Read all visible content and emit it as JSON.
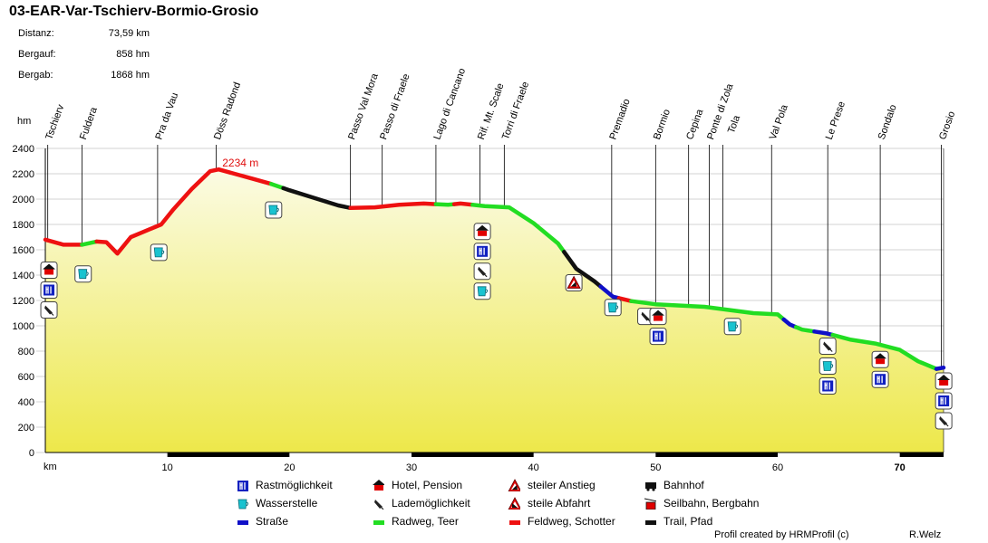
{
  "header": {
    "title": "03-EAR-Var-Tschierv-Bormio-Grosio",
    "stats": [
      {
        "label": "Distanz:",
        "value": "73,59 km"
      },
      {
        "label": "Bergauf:",
        "value": "858 hm"
      },
      {
        "label": "Bergab:",
        "value": "1868 hm"
      }
    ]
  },
  "footer": {
    "created_by": "Profil created by HRMProfil (c)",
    "author": "R.Welz"
  },
  "colors": {
    "road": "#1010c8",
    "bike": "#22dd22",
    "gravel": "#ee1111",
    "trail": "#111111",
    "fill_top": "#fbfbe4",
    "fill_bottom": "#ede84a"
  },
  "chart_data": {
    "type": "line",
    "xlabel": "km",
    "ylabel": "hm",
    "xlim": [
      0,
      73.59
    ],
    "ylim": [
      0,
      2400
    ],
    "x_ticks": [
      10,
      20,
      30,
      40,
      50,
      60,
      70
    ],
    "y_ticks": [
      0,
      200,
      400,
      600,
      800,
      1000,
      1200,
      1400,
      1600,
      1800,
      2000,
      2200,
      2400
    ],
    "max_label": "2234 m",
    "max_point": {
      "km": 14.2,
      "elev": 2234
    },
    "profile": [
      {
        "km": 0,
        "elev": 1680
      },
      {
        "km": 1.5,
        "elev": 1640
      },
      {
        "km": 3,
        "elev": 1640
      },
      {
        "km": 4.2,
        "elev": 1665
      },
      {
        "km": 5.0,
        "elev": 1660
      },
      {
        "km": 5.9,
        "elev": 1570
      },
      {
        "km": 7,
        "elev": 1700
      },
      {
        "km": 8.5,
        "elev": 1760
      },
      {
        "km": 9.5,
        "elev": 1800
      },
      {
        "km": 10.5,
        "elev": 1920
      },
      {
        "km": 12,
        "elev": 2080
      },
      {
        "km": 13.5,
        "elev": 2220
      },
      {
        "km": 14.2,
        "elev": 2234
      },
      {
        "km": 15.5,
        "elev": 2200
      },
      {
        "km": 17,
        "elev": 2160
      },
      {
        "km": 18.5,
        "elev": 2120
      },
      {
        "km": 20,
        "elev": 2070
      },
      {
        "km": 22,
        "elev": 2010
      },
      {
        "km": 24,
        "elev": 1950
      },
      {
        "km": 25,
        "elev": 1930
      },
      {
        "km": 27,
        "elev": 1935
      },
      {
        "km": 29,
        "elev": 1955
      },
      {
        "km": 31,
        "elev": 1965
      },
      {
        "km": 33,
        "elev": 1955
      },
      {
        "km": 34,
        "elev": 1965
      },
      {
        "km": 36,
        "elev": 1945
      },
      {
        "km": 38,
        "elev": 1935
      },
      {
        "km": 40,
        "elev": 1810
      },
      {
        "km": 42,
        "elev": 1650
      },
      {
        "km": 43.5,
        "elev": 1450
      },
      {
        "km": 45,
        "elev": 1350
      },
      {
        "km": 46.5,
        "elev": 1230
      },
      {
        "km": 48,
        "elev": 1195
      },
      {
        "km": 50,
        "elev": 1170
      },
      {
        "km": 52,
        "elev": 1160
      },
      {
        "km": 54,
        "elev": 1150
      },
      {
        "km": 56,
        "elev": 1125
      },
      {
        "km": 58,
        "elev": 1100
      },
      {
        "km": 60,
        "elev": 1090
      },
      {
        "km": 61,
        "elev": 1010
      },
      {
        "km": 62,
        "elev": 970
      },
      {
        "km": 64,
        "elev": 940
      },
      {
        "km": 66,
        "elev": 890
      },
      {
        "km": 68,
        "elev": 860
      },
      {
        "km": 70,
        "elev": 810
      },
      {
        "km": 71.5,
        "elev": 720
      },
      {
        "km": 73,
        "elev": 660
      },
      {
        "km": 73.59,
        "elev": 670
      }
    ],
    "segments": [
      {
        "from": 0,
        "to": 1.2,
        "type": "gravel"
      },
      {
        "from": 1.2,
        "to": 3,
        "type": "gravel"
      },
      {
        "from": 3,
        "to": 4.2,
        "type": "bike"
      },
      {
        "from": 4.2,
        "to": 18.5,
        "type": "gravel"
      },
      {
        "from": 18.5,
        "to": 19.5,
        "type": "bike"
      },
      {
        "from": 19.5,
        "to": 25,
        "type": "trail"
      },
      {
        "from": 25,
        "to": 32,
        "type": "gravel"
      },
      {
        "from": 32,
        "to": 33.5,
        "type": "bike"
      },
      {
        "from": 33.5,
        "to": 35,
        "type": "gravel"
      },
      {
        "from": 35,
        "to": 42.5,
        "type": "bike"
      },
      {
        "from": 42.5,
        "to": 45.5,
        "type": "trail"
      },
      {
        "from": 45.5,
        "to": 47,
        "type": "road"
      },
      {
        "from": 47,
        "to": 48,
        "type": "gravel"
      },
      {
        "from": 48,
        "to": 60.5,
        "type": "bike"
      },
      {
        "from": 60.5,
        "to": 61.5,
        "type": "road"
      },
      {
        "from": 61.5,
        "to": 63,
        "type": "bike"
      },
      {
        "from": 63,
        "to": 64.5,
        "type": "road"
      },
      {
        "from": 64.5,
        "to": 73,
        "type": "bike"
      },
      {
        "from": 73,
        "to": 73.59,
        "type": "road"
      }
    ],
    "bottom_bar": [
      {
        "from": 10,
        "to": 20
      },
      {
        "from": 30,
        "to": 40
      },
      {
        "from": 50,
        "to": 60
      },
      {
        "from": 70,
        "to": 73.59
      }
    ],
    "waypoints": [
      {
        "name": "Tschierv",
        "km": 0.2
      },
      {
        "name": "Fuldera",
        "km": 3.0
      },
      {
        "name": "Pra da Vau",
        "km": 9.2
      },
      {
        "name": "Döss Radond",
        "km": 14.0
      },
      {
        "name": "Passo Val Mora",
        "km": 25.0
      },
      {
        "name": "Passo di Fraele",
        "km": 27.6
      },
      {
        "name": "Lago di Cancano",
        "km": 32.0
      },
      {
        "name": "Rif. Mt. Scale",
        "km": 35.6
      },
      {
        "name": "Torri di Fraele",
        "km": 37.6
      },
      {
        "name": "Premadio",
        "km": 46.4
      },
      {
        "name": "Bormio",
        "km": 50.0
      },
      {
        "name": "Cepina",
        "km": 52.7
      },
      {
        "name": "Ponte di Zola",
        "km": 54.4
      },
      {
        "name": "Tola",
        "km": 55.5
      },
      {
        "name": "Val Pola",
        "km": 59.5
      },
      {
        "name": "Le Prese",
        "km": 64.1
      },
      {
        "name": "Sondalo",
        "km": 68.4
      },
      {
        "name": "Grosio",
        "km": 73.4
      }
    ],
    "icon_stacks": [
      {
        "km": 0.3,
        "elev": 1525,
        "icons": [
          "hotel",
          "food",
          "charge"
        ]
      },
      {
        "km": 3.1,
        "elev": 1495,
        "icons": [
          "water"
        ]
      },
      {
        "km": 9.3,
        "elev": 1665,
        "icons": [
          "water"
        ]
      },
      {
        "km": 18.7,
        "elev": 2000,
        "icons": [
          "water"
        ]
      },
      {
        "km": 35.8,
        "elev": 1830,
        "icons": [
          "hotel",
          "food",
          "charge",
          "water"
        ]
      },
      {
        "km": 43.3,
        "elev": 1425,
        "icons": [
          "steep_up"
        ]
      },
      {
        "km": 46.5,
        "elev": 1230,
        "icons": [
          "water"
        ]
      },
      {
        "km": 49.2,
        "elev": 1160,
        "icons": [
          "charge"
        ]
      },
      {
        "km": 50.2,
        "elev": 1160,
        "icons": [
          "hotel",
          "food"
        ]
      },
      {
        "km": 56.3,
        "elev": 1080,
        "icons": [
          "water"
        ]
      },
      {
        "km": 64.1,
        "elev": 925,
        "icons": [
          "charge",
          "water",
          "food"
        ]
      },
      {
        "km": 68.4,
        "elev": 820,
        "icons": [
          "hotel",
          "food"
        ]
      },
      {
        "km": 73.6,
        "elev": 650,
        "icons": [
          "hotel",
          "food",
          "charge"
        ]
      }
    ]
  },
  "legend": [
    {
      "icon": "food",
      "label": "Rastmöglichkeit"
    },
    {
      "icon": "hotel",
      "label": "Hotel, Pension"
    },
    {
      "icon": "steep_up",
      "label": "steiler Anstieg"
    },
    {
      "icon": "train",
      "label": "Bahnhof"
    },
    {
      "icon": "water",
      "label": "Wasserstelle"
    },
    {
      "icon": "charge",
      "label": "Lademöglichkeit"
    },
    {
      "icon": "steep_down",
      "label": "steile Abfahrt"
    },
    {
      "icon": "cable",
      "label": "Seilbahn, Bergbahn"
    },
    {
      "icon": "road",
      "label": "Straße"
    },
    {
      "icon": "bike",
      "label": "Radweg, Teer"
    },
    {
      "icon": "gravel",
      "label": "Feldweg, Schotter"
    },
    {
      "icon": "trail",
      "label": "Trail, Pfad"
    }
  ]
}
